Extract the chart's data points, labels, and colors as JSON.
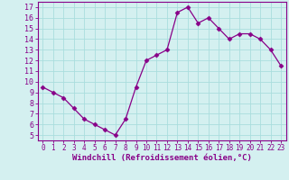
{
  "x": [
    0,
    1,
    2,
    3,
    4,
    5,
    6,
    7,
    8,
    9,
    10,
    11,
    12,
    13,
    14,
    15,
    16,
    17,
    18,
    19,
    20,
    21,
    22,
    23
  ],
  "y": [
    9.5,
    9.0,
    8.5,
    7.5,
    6.5,
    6.0,
    5.5,
    5.0,
    6.5,
    9.5,
    12.0,
    12.5,
    13.0,
    16.5,
    17.0,
    15.5,
    16.0,
    15.0,
    14.0,
    14.5,
    14.5,
    14.0,
    13.0,
    11.5
  ],
  "line_color": "#880088",
  "marker": "D",
  "marker_size": 2.5,
  "bg_color": "#d4f0f0",
  "grid_color": "#aadddd",
  "xlabel": "Windchill (Refroidissement éolien,°C)",
  "ylabel_ticks": [
    5,
    6,
    7,
    8,
    9,
    10,
    11,
    12,
    13,
    14,
    15,
    16,
    17
  ],
  "xtick_labels": [
    "0",
    "1",
    "2",
    "3",
    "4",
    "5",
    "6",
    "7",
    "8",
    "9",
    "10",
    "11",
    "12",
    "13",
    "14",
    "15",
    "16",
    "17",
    "18",
    "19",
    "20",
    "21",
    "22",
    "23"
  ],
  "xlim": [
    -0.5,
    23.5
  ],
  "ylim": [
    4.5,
    17.5
  ],
  "tick_color": "#880088",
  "label_color": "#880088",
  "xlabel_fontsize": 6.5,
  "ytick_fontsize": 6.0,
  "xtick_fontsize": 5.5
}
